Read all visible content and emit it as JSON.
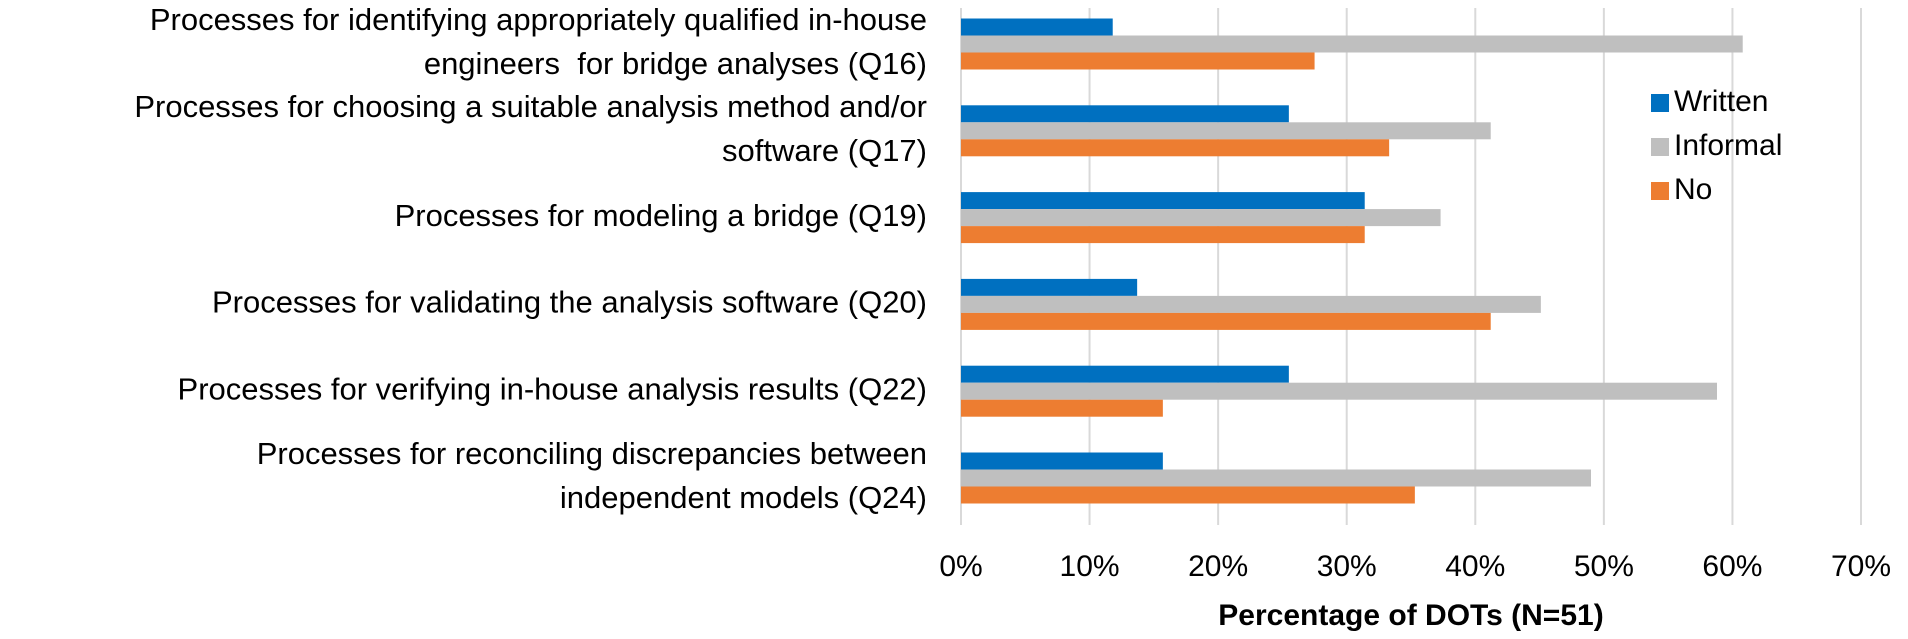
{
  "chart_data": {
    "type": "barh",
    "xlabel": "Percentage of DOTs (N=51)",
    "categories": [
      [
        "Processes for identifying appropriately qualified in-house",
        "engineers  for bridge analyses (Q16)"
      ],
      [
        "Processes for choosing a suitable analysis method and/or",
        "software (Q17)"
      ],
      [
        "Processes for modeling a bridge (Q19)"
      ],
      [
        "Processes for validating the analysis software (Q20)"
      ],
      [
        "Processes for verifying in-house analysis results (Q22)"
      ],
      [
        "Processes for reconciling discrepancies between",
        "independent models (Q24)"
      ]
    ],
    "series": [
      {
        "name": "Written",
        "color": "#0070c0",
        "values": [
          11.8,
          25.5,
          31.4,
          13.7,
          25.5,
          15.7
        ]
      },
      {
        "name": "Informal",
        "color": "#bfbfbf",
        "values": [
          60.8,
          41.2,
          37.3,
          45.1,
          58.8,
          49.0
        ]
      },
      {
        "name": "No",
        "color": "#ed7d31",
        "values": [
          27.5,
          33.3,
          31.4,
          41.2,
          15.7,
          35.3
        ]
      }
    ],
    "xlim": [
      0,
      70
    ],
    "xticks": [
      {
        "value": 0,
        "label": "0%"
      },
      {
        "value": 10,
        "label": "10%"
      },
      {
        "value": 20,
        "label": "20%"
      },
      {
        "value": 30,
        "label": "30%"
      },
      {
        "value": 40,
        "label": "40%"
      },
      {
        "value": 50,
        "label": "50%"
      },
      {
        "value": 60,
        "label": "60%"
      },
      {
        "value": 70,
        "label": "70%"
      }
    ],
    "grid": true,
    "legend": "right"
  }
}
